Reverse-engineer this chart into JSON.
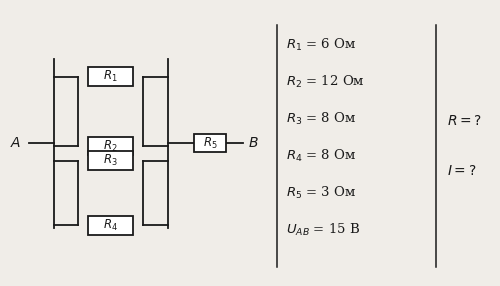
{
  "bg_color": "#f0ede8",
  "table_lines": [
    {
      "label": "R",
      "sub": "1",
      "val": " = 6 Ом"
    },
    {
      "label": "R",
      "sub": "2",
      "val": " = 12 Ом"
    },
    {
      "label": "R",
      "sub": "3",
      "val": " = 8 Ом"
    },
    {
      "label": "R",
      "sub": "4",
      "val": " = 8 Ом"
    },
    {
      "label": "R",
      "sub": "5",
      "val": " = 3 Ом"
    },
    {
      "label": "U",
      "sub": "AB",
      "val": " = 15 В"
    }
  ],
  "result_lines": [
    "R = ?",
    "I = ?"
  ],
  "lw": 1.3,
  "color": "#1a1a1a"
}
